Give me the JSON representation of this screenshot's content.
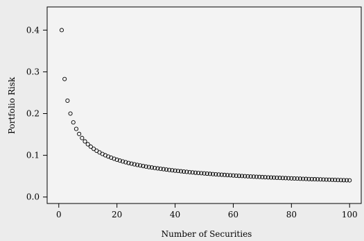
{
  "chart_data": {
    "type": "scatter",
    "xlabel": "Number of Securities",
    "ylabel": "Portfolio Risk",
    "xlim": [
      -4,
      104
    ],
    "ylim": [
      -0.0155,
      0.4555
    ],
    "x_ticks": [
      0,
      20,
      40,
      60,
      80,
      100
    ],
    "y_ticks": [
      0.0,
      0.1,
      0.2,
      0.3,
      0.4
    ],
    "x_tick_labels": [
      "0",
      "20",
      "40",
      "60",
      "80",
      "100"
    ],
    "y_tick_labels": [
      "0.0",
      "0.1",
      "0.2",
      "0.3",
      "0.4"
    ],
    "grid": false,
    "x": [
      1,
      2,
      3,
      4,
      5,
      6,
      7,
      8,
      9,
      10,
      11,
      12,
      13,
      14,
      15,
      16,
      17,
      18,
      19,
      20,
      21,
      22,
      23,
      24,
      25,
      26,
      27,
      28,
      29,
      30,
      31,
      32,
      33,
      34,
      35,
      36,
      37,
      38,
      39,
      40,
      41,
      42,
      43,
      44,
      45,
      46,
      47,
      48,
      49,
      50,
      51,
      52,
      53,
      54,
      55,
      56,
      57,
      58,
      59,
      60,
      61,
      62,
      63,
      64,
      65,
      66,
      67,
      68,
      69,
      70,
      71,
      72,
      73,
      74,
      75,
      76,
      77,
      78,
      79,
      80,
      81,
      82,
      83,
      84,
      85,
      86,
      87,
      88,
      89,
      90,
      91,
      92,
      93,
      94,
      95,
      96,
      97,
      98,
      99,
      100
    ],
    "y": [
      0.4,
      0.2828,
      0.2309,
      0.2,
      0.1789,
      0.1633,
      0.1512,
      0.1414,
      0.1333,
      0.1265,
      0.1206,
      0.1155,
      0.1109,
      0.1069,
      0.1033,
      0.1,
      0.097,
      0.0943,
      0.0918,
      0.0894,
      0.0873,
      0.0853,
      0.0834,
      0.0816,
      0.08,
      0.0784,
      0.077,
      0.0756,
      0.0743,
      0.073,
      0.0718,
      0.0707,
      0.0696,
      0.0686,
      0.0676,
      0.0667,
      0.0658,
      0.0649,
      0.0641,
      0.0632,
      0.0625,
      0.0617,
      0.061,
      0.0603,
      0.0596,
      0.059,
      0.0583,
      0.0577,
      0.0571,
      0.0566,
      0.056,
      0.0555,
      0.0549,
      0.0544,
      0.0539,
      0.0535,
      0.053,
      0.0525,
      0.0521,
      0.0516,
      0.0512,
      0.0508,
      0.0504,
      0.05,
      0.0496,
      0.0492,
      0.0489,
      0.0485,
      0.0482,
      0.0478,
      0.0475,
      0.0471,
      0.0468,
      0.0465,
      0.0462,
      0.0459,
      0.0456,
      0.0453,
      0.045,
      0.0447,
      0.0444,
      0.0442,
      0.0439,
      0.0436,
      0.0434,
      0.0431,
      0.0429,
      0.0426,
      0.0424,
      0.0422,
      0.0419,
      0.0417,
      0.0415,
      0.0413,
      0.041,
      0.0408,
      0.0406,
      0.0404,
      0.0402,
      0.04
    ]
  }
}
